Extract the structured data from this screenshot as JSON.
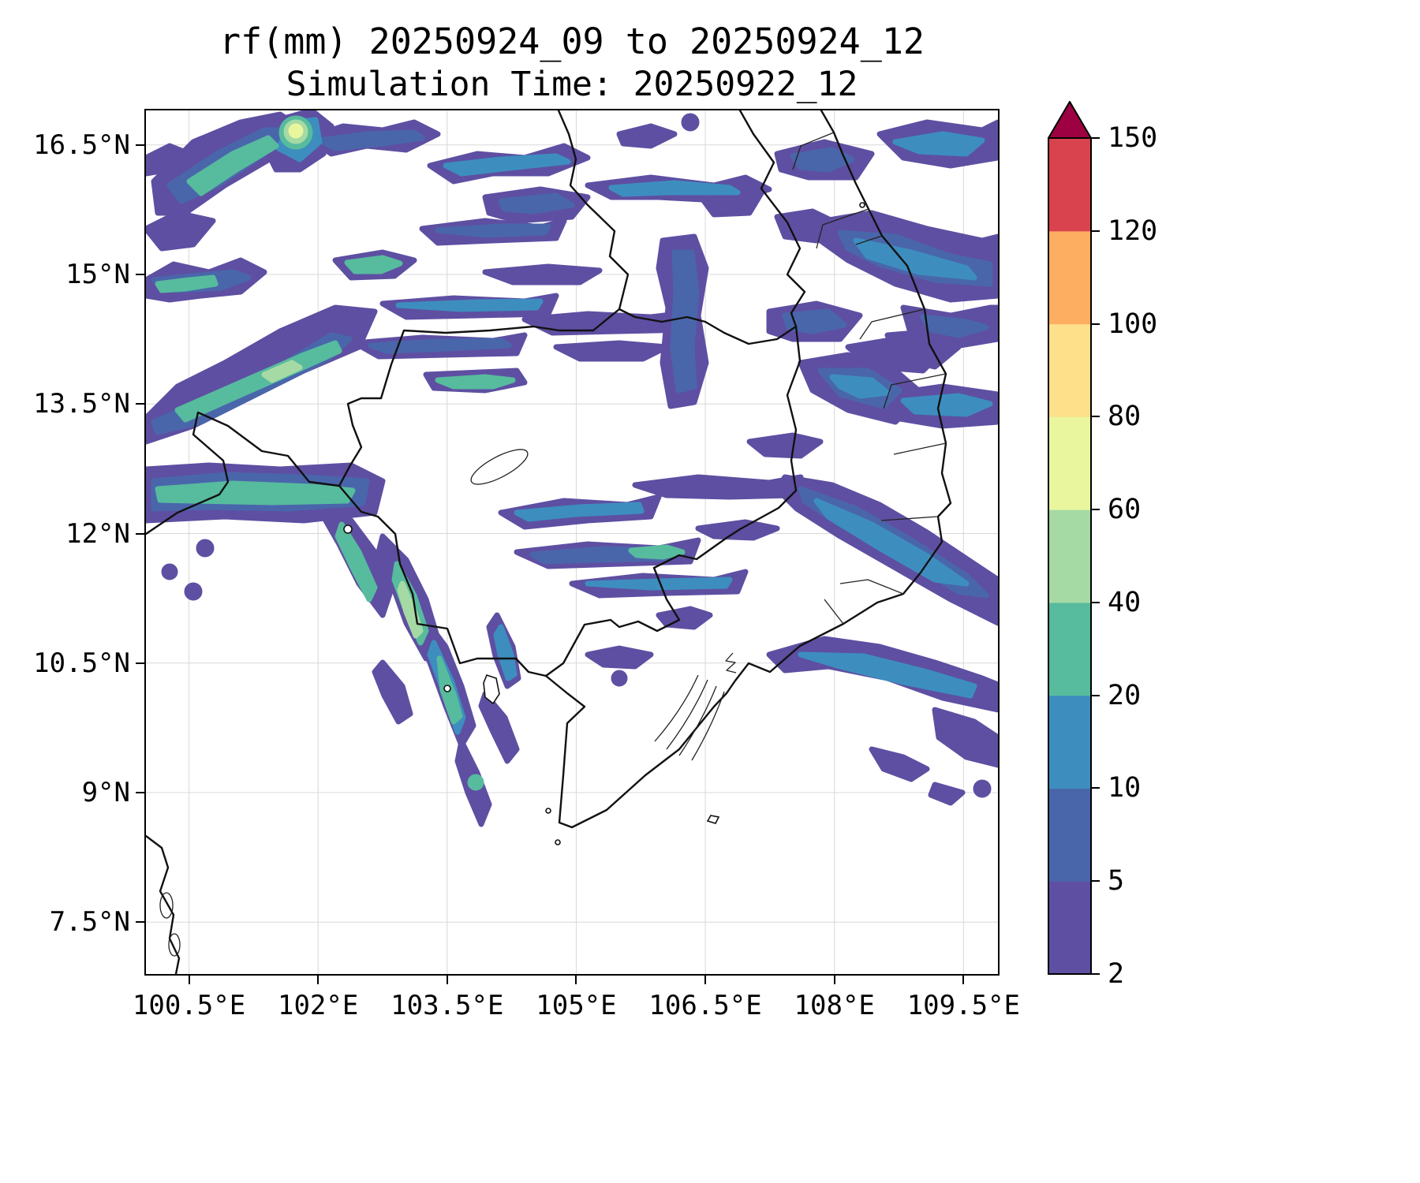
{
  "figure": {
    "title": "rf(mm) 20250924_09 to 20250924_12",
    "subtitle": "Simulation Time: 20250922_12"
  },
  "chart_data": {
    "type": "heatmap",
    "title": "rf(mm) 20250924_09 to 20250924_12",
    "subtitle": "Simulation Time: 20250922_12",
    "variable": "rf",
    "units": "mm",
    "valid_period": {
      "start": "20250924_09",
      "end": "20250924_12"
    },
    "simulation_time": "20250922_12",
    "x_axis": {
      "tick_values": [
        100.5,
        102,
        103.5,
        105,
        106.5,
        108,
        109.5
      ],
      "tick_labels": [
        "100.5°E",
        "102°E",
        "103.5°E",
        "105°E",
        "106.5°E",
        "108°E",
        "109.5°E"
      ],
      "range": [
        100.0,
        109.9
      ]
    },
    "y_axis": {
      "tick_values": [
        16.5,
        15,
        13.5,
        12,
        10.5,
        9,
        7.5
      ],
      "tick_labels": [
        "16.5°N",
        "15°N",
        "13.5°N",
        "12°N",
        "10.5°N",
        "9°N",
        "7.5°N"
      ],
      "range": [
        6.9,
        16.9
      ]
    },
    "colorbar": {
      "orientation": "vertical",
      "position": "right",
      "levels": [
        2,
        5,
        10,
        20,
        40,
        60,
        80,
        100,
        120,
        150
      ],
      "tick_labels": [
        "2",
        "5",
        "10",
        "20",
        "40",
        "60",
        "80",
        "100",
        "120",
        "150"
      ],
      "segment_colors": [
        "#5e4fa2",
        "#4a66ab",
        "#3d8ebf",
        "#57bb9e",
        "#a5daa4",
        "#e9f69e",
        "#fee08b",
        "#fdae61",
        "#d8434e"
      ],
      "extend_above_color": "#9e0142"
    },
    "grid": true
  },
  "styles": {
    "background": "#ffffff",
    "boundary_color": "#111111",
    "grid_color": "#d8d8d8",
    "text_color": "#000000"
  }
}
